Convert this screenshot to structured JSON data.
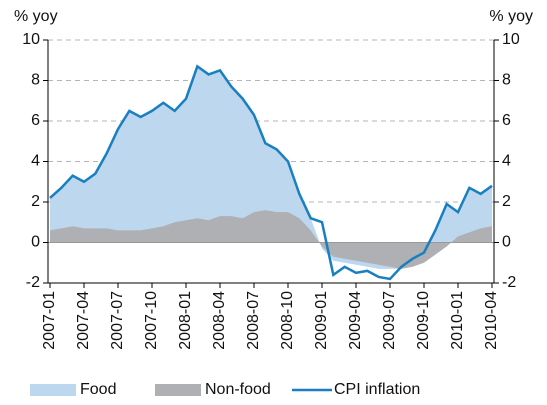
{
  "chart_data": {
    "type": "area_line",
    "y_label": "% yoy",
    "y2_label": "% yoy",
    "categories": [
      "2007-01",
      null,
      null,
      "2007-04",
      null,
      null,
      "2007-07",
      null,
      null,
      "2007-10",
      null,
      null,
      "2008-01",
      null,
      null,
      "2008-04",
      null,
      null,
      "2008-07",
      null,
      null,
      "2008-10",
      null,
      null,
      "2009-01",
      null,
      null,
      "2009-04",
      null,
      null,
      "2009-07",
      null,
      null,
      "2009-10",
      null,
      null,
      "2010-01",
      null,
      null,
      "2010-04"
    ],
    "series": [
      {
        "name": "Food",
        "color": "#bcd7ee",
        "kind": "area",
        "values": [
          1.6,
          2.0,
          2.5,
          2.3,
          2.7,
          3.7,
          5.0,
          5.9,
          5.6,
          5.8,
          6.1,
          5.5,
          6.0,
          7.5,
          7.2,
          7.2,
          6.4,
          5.9,
          4.8,
          3.3,
          3.1,
          2.5,
          1.2,
          0.6,
          -0.1,
          -0.2,
          -0.2,
          -0.2,
          -0.2,
          -0.2,
          -0.1,
          0,
          0,
          0.1,
          1.2,
          2.1,
          1.2,
          2.2,
          1.7,
          2.0
        ]
      },
      {
        "name": "Non-food",
        "color": "#aeb0b3",
        "kind": "area",
        "values": [
          0.6,
          0.7,
          0.8,
          0.7,
          0.7,
          0.7,
          0.6,
          0.6,
          0.6,
          0.7,
          0.8,
          1.0,
          1.1,
          1.2,
          1.1,
          1.3,
          1.3,
          1.2,
          1.5,
          1.6,
          1.5,
          1.5,
          1.2,
          0.6,
          -0.2,
          -0.7,
          -0.8,
          -0.9,
          -1.0,
          -1.1,
          -1.2,
          -1.3,
          -1.2,
          -1.0,
          -0.6,
          -0.2,
          0.3,
          0.5,
          0.7,
          0.8
        ]
      },
      {
        "name": "CPI inflation",
        "color": "#1a7fc1",
        "kind": "line",
        "values": [
          2.2,
          2.7,
          3.3,
          3.0,
          3.4,
          4.4,
          5.6,
          6.5,
          6.2,
          6.5,
          6.9,
          6.5,
          7.1,
          8.7,
          8.3,
          8.5,
          7.7,
          7.1,
          6.3,
          4.9,
          4.6,
          4.0,
          2.4,
          1.2,
          1.0,
          -1.6,
          -1.2,
          -1.5,
          -1.4,
          -1.7,
          -1.8,
          -1.2,
          -0.8,
          -0.5,
          0.6,
          1.9,
          1.5,
          2.7,
          2.4,
          2.8
        ]
      }
    ],
    "ylim": [
      -2,
      10
    ],
    "yticks": [
      -2,
      0,
      2,
      4,
      6,
      8,
      10
    ],
    "y2lim": [
      -2,
      10
    ],
    "y2ticks": [
      -2,
      0,
      2,
      4,
      6,
      8,
      10
    ],
    "grid": true,
    "legend": "bottom"
  }
}
